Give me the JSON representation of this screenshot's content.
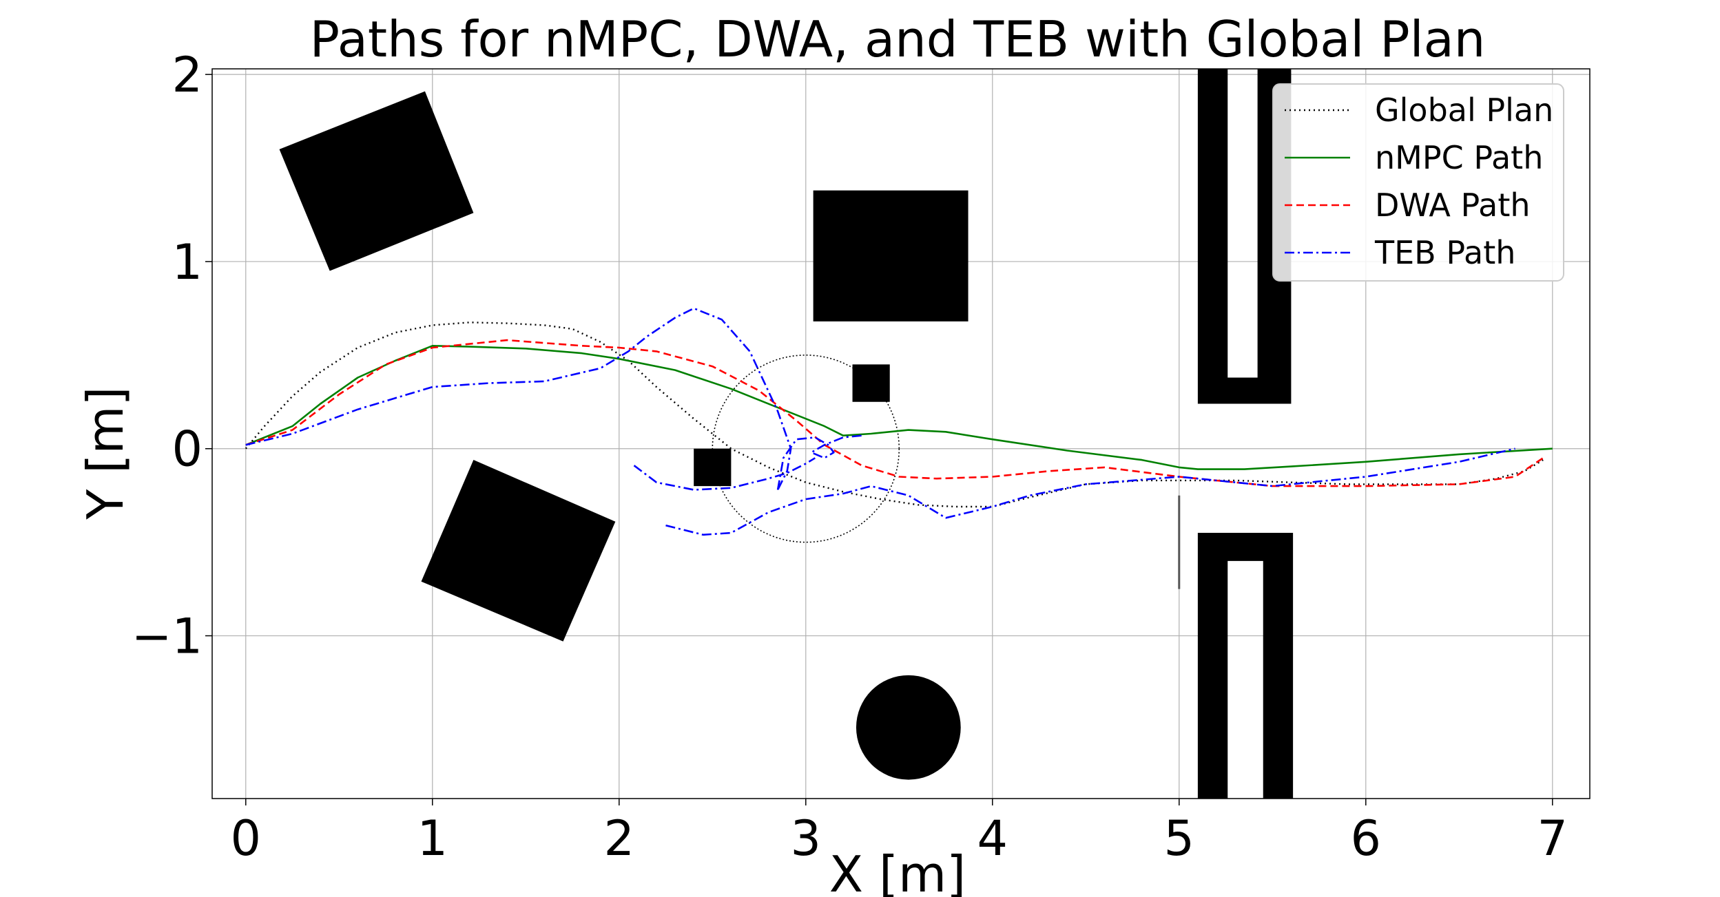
{
  "chart_data": {
    "type": "line",
    "title": "Paths for nMPC, DWA, and TEB with Global Plan",
    "xlabel": "X [m]",
    "ylabel": "Y [m]",
    "xlim": [
      -0.18,
      7.2
    ],
    "ylim": [
      -1.87,
      2.03
    ],
    "xticks": [
      0,
      1,
      2,
      3,
      4,
      5,
      6,
      7
    ],
    "xtick_labels": [
      "0",
      "1",
      "2",
      "3",
      "4",
      "5",
      "6",
      "7"
    ],
    "yticks": [
      -1,
      0,
      1,
      2
    ],
    "ytick_labels": [
      "−1",
      "0",
      "1",
      "2"
    ],
    "grid": true,
    "legend_position": "top-right",
    "series": [
      {
        "name": "Global Plan",
        "color": "#000000",
        "style": "dotted",
        "x": [
          0.0,
          0.1,
          0.25,
          0.4,
          0.6,
          0.8,
          1.0,
          1.2,
          1.4,
          1.6,
          1.75,
          1.9,
          2.05,
          2.2,
          2.4,
          2.6,
          2.8,
          3.0,
          3.2,
          3.4,
          3.6,
          3.8,
          4.0,
          4.2,
          4.5,
          4.8,
          5.0,
          5.3,
          5.6,
          5.9,
          6.2,
          6.5,
          6.7,
          6.85,
          6.95
        ],
        "y": [
          0.0,
          0.12,
          0.28,
          0.41,
          0.54,
          0.62,
          0.66,
          0.675,
          0.67,
          0.66,
          0.64,
          0.57,
          0.47,
          0.33,
          0.16,
          0.0,
          -0.1,
          -0.18,
          -0.23,
          -0.27,
          -0.3,
          -0.31,
          -0.31,
          -0.26,
          -0.19,
          -0.17,
          -0.17,
          -0.17,
          -0.18,
          -0.19,
          -0.19,
          -0.19,
          -0.16,
          -0.12,
          -0.06
        ]
      },
      {
        "name": "nMPC Path",
        "color": "#008000",
        "style": "solid",
        "x": [
          0.0,
          0.25,
          0.4,
          0.6,
          0.8,
          1.0,
          1.2,
          1.5,
          1.8,
          2.0,
          2.3,
          2.6,
          2.9,
          3.1,
          3.2,
          3.35,
          3.55,
          3.75,
          4.0,
          4.4,
          4.8,
          5.0,
          5.1,
          5.35,
          5.6,
          6.0,
          6.5,
          7.0
        ],
        "y": [
          0.02,
          0.12,
          0.24,
          0.38,
          0.47,
          0.55,
          0.545,
          0.535,
          0.51,
          0.48,
          0.42,
          0.32,
          0.2,
          0.12,
          0.07,
          0.08,
          0.1,
          0.09,
          0.05,
          -0.01,
          -0.06,
          -0.1,
          -0.11,
          -0.11,
          -0.095,
          -0.07,
          -0.03,
          0.0
        ]
      },
      {
        "name": "DWA Path",
        "color": "#ff0000",
        "style": "dashed",
        "x": [
          0.0,
          0.25,
          0.5,
          0.75,
          1.0,
          1.4,
          1.8,
          2.0,
          2.2,
          2.5,
          2.75,
          2.95,
          3.1,
          3.3,
          3.5,
          3.7,
          4.0,
          4.3,
          4.6,
          5.0,
          5.5,
          6.0,
          6.5,
          6.8,
          6.95
        ],
        "y": [
          0.02,
          0.1,
          0.29,
          0.45,
          0.54,
          0.58,
          0.55,
          0.54,
          0.52,
          0.44,
          0.31,
          0.15,
          0.02,
          -0.09,
          -0.15,
          -0.16,
          -0.15,
          -0.12,
          -0.1,
          -0.15,
          -0.2,
          -0.2,
          -0.19,
          -0.15,
          -0.05
        ]
      },
      {
        "name": "TEB Path",
        "color": "#0000ff",
        "style": "dashdot",
        "segments": [
          {
            "x": [
              0.0,
              0.25,
              0.6,
              1.0,
              1.3,
              1.6,
              1.9,
              2.05,
              2.15,
              2.3,
              2.4,
              2.55,
              2.7,
              2.85,
              2.92,
              2.9,
              2.85
            ],
            "y": [
              0.02,
              0.08,
              0.21,
              0.33,
              0.35,
              0.36,
              0.43,
              0.52,
              0.6,
              0.7,
              0.75,
              0.69,
              0.52,
              0.2,
              0.0,
              -0.12,
              -0.22
            ]
          },
          {
            "x": [
              2.85,
              2.88,
              2.95,
              3.05,
              3.12,
              3.15,
              3.1,
              3.03,
              3.1,
              3.2,
              3.3
            ],
            "y": [
              -0.22,
              -0.05,
              0.05,
              0.06,
              0.02,
              -0.02,
              -0.05,
              -0.02,
              0.02,
              0.06,
              0.07
            ]
          },
          {
            "x": [
              2.08,
              2.2,
              2.4,
              2.6,
              2.8,
              2.9,
              3.0,
              3.05
            ],
            "y": [
              -0.09,
              -0.18,
              -0.22,
              -0.21,
              -0.16,
              -0.13,
              -0.08,
              -0.05
            ]
          },
          {
            "x": [
              2.25,
              2.45,
              2.6,
              2.8,
              3.0,
              3.2,
              3.35,
              3.55,
              3.75,
              4.0,
              4.2,
              4.5,
              5.0,
              5.5,
              6.0,
              6.5,
              6.8
            ],
            "y": [
              -0.41,
              -0.46,
              -0.45,
              -0.34,
              -0.27,
              -0.24,
              -0.2,
              -0.25,
              -0.37,
              -0.31,
              -0.25,
              -0.19,
              -0.15,
              -0.2,
              -0.15,
              -0.07,
              0.0
            ]
          }
        ]
      }
    ],
    "annotations": [
      {
        "type": "dotted-circle",
        "center": [
          3.0,
          0.0
        ],
        "radius": 0.5,
        "color": "#000000"
      }
    ],
    "obstacles": [
      {
        "shape": "polygon",
        "points": [
          [
            0.18,
            1.6
          ],
          [
            0.96,
            1.91
          ],
          [
            1.22,
            1.26
          ],
          [
            0.45,
            0.95
          ]
        ]
      },
      {
        "shape": "polygon",
        "points": [
          [
            1.22,
            -0.06
          ],
          [
            1.98,
            -0.39
          ],
          [
            1.7,
            -1.03
          ],
          [
            0.94,
            -0.71
          ]
        ]
      },
      {
        "shape": "polygon",
        "points": [
          [
            3.04,
            1.38
          ],
          [
            3.87,
            1.38
          ],
          [
            3.87,
            0.68
          ],
          [
            3.04,
            0.68
          ]
        ]
      },
      {
        "shape": "polygon",
        "points": [
          [
            3.25,
            0.45
          ],
          [
            3.45,
            0.45
          ],
          [
            3.45,
            0.25
          ],
          [
            3.25,
            0.25
          ]
        ]
      },
      {
        "shape": "polygon",
        "points": [
          [
            2.4,
            0.0
          ],
          [
            2.6,
            0.0
          ],
          [
            2.6,
            -0.2
          ],
          [
            2.4,
            -0.2
          ]
        ]
      },
      {
        "shape": "circle",
        "center": [
          3.55,
          -1.49
        ],
        "radius": 0.28
      },
      {
        "shape": "polygon",
        "points": [
          [
            5.1,
            2.03
          ],
          [
            5.26,
            2.03
          ],
          [
            5.26,
            0.38
          ],
          [
            5.42,
            0.38
          ],
          [
            5.42,
            2.03
          ],
          [
            5.6,
            2.03
          ],
          [
            5.6,
            0.24
          ],
          [
            5.1,
            0.24
          ]
        ]
      },
      {
        "shape": "polygon",
        "points": [
          [
            5.1,
            -1.87
          ],
          [
            5.26,
            -1.87
          ],
          [
            5.26,
            -0.6
          ],
          [
            5.45,
            -0.6
          ],
          [
            5.45,
            -1.87
          ],
          [
            5.61,
            -1.87
          ],
          [
            5.61,
            -0.45
          ],
          [
            5.1,
            -0.45
          ]
        ]
      },
      {
        "shape": "line",
        "points": [
          [
            5.0,
            -0.25
          ],
          [
            5.0,
            -0.75
          ]
        ],
        "color": "#555555"
      }
    ]
  }
}
